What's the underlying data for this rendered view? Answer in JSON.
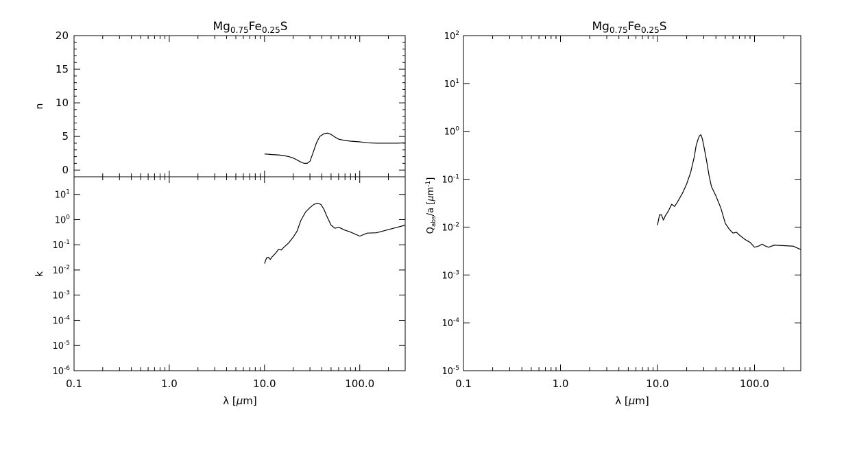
{
  "chart_data": [
    {
      "type": "line",
      "title": "Mg0.75Fe0.25S",
      "title_parts": {
        "a": "Mg",
        "b": "0.75",
        "c": "Fe",
        "d": "0.25",
        "e": "S"
      },
      "xlabel": "λ [μm]",
      "xlabel_parts": {
        "a": "λ [",
        "b": "μ",
        "c": "m]"
      },
      "xscale": "log",
      "xlim": [
        0.1,
        300
      ],
      "x_tick_labels": [
        "0.1",
        "1.0",
        "10.0",
        "100.0"
      ],
      "ylabel": "n",
      "yscale": "linear",
      "ylim": [
        -1,
        20
      ],
      "y_tick_labels": [
        "0",
        "5",
        "10",
        "15",
        "20"
      ],
      "grid": false,
      "series": [
        {
          "x": [
            10,
            12,
            14,
            16,
            18,
            20,
            22,
            24,
            26,
            28,
            30,
            32,
            35,
            38,
            42,
            46,
            50,
            55,
            60,
            70,
            80,
            100,
            120,
            150,
            200,
            250,
            300
          ],
          "values": [
            2.4,
            2.3,
            2.25,
            2.15,
            2.0,
            1.8,
            1.5,
            1.2,
            1.0,
            1.0,
            1.3,
            2.4,
            4.0,
            5.0,
            5.4,
            5.5,
            5.3,
            4.9,
            4.6,
            4.4,
            4.3,
            4.2,
            4.05,
            4.0,
            4.0,
            4.0,
            4.05
          ]
        }
      ]
    },
    {
      "type": "line",
      "xlabel": "λ [μm]",
      "xscale": "log",
      "xlim": [
        0.1,
        300
      ],
      "x_tick_labels": [
        "0.1",
        "1.0",
        "10.0",
        "100.0"
      ],
      "ylabel": "k",
      "yscale": "log",
      "ylim": [
        1e-06,
        50
      ],
      "y_tick_labels": [
        {
          "base": "10",
          "exp": "1"
        },
        {
          "base": "10",
          "exp": "0"
        },
        {
          "base": "10",
          "exp": "-1"
        },
        {
          "base": "10",
          "exp": "-2"
        },
        {
          "base": "10",
          "exp": "-3"
        },
        {
          "base": "10",
          "exp": "-4"
        },
        {
          "base": "10",
          "exp": "-5"
        },
        {
          "base": "10",
          "exp": "-6"
        }
      ],
      "grid": false,
      "series": [
        {
          "x": [
            10,
            10.5,
            11,
            11.5,
            12,
            13,
            14,
            15,
            16,
            18,
            20,
            22,
            24,
            27,
            30,
            33,
            36,
            39,
            42,
            45,
            50,
            55,
            60,
            70,
            80,
            100,
            120,
            150,
            200,
            250,
            300
          ],
          "values": [
            0.018,
            0.03,
            0.032,
            0.026,
            0.033,
            0.045,
            0.065,
            0.062,
            0.08,
            0.12,
            0.2,
            0.35,
            0.9,
            2.0,
            3.0,
            4.0,
            4.5,
            4.0,
            2.6,
            1.4,
            0.6,
            0.45,
            0.5,
            0.38,
            0.32,
            0.22,
            0.29,
            0.3,
            0.4,
            0.5,
            0.6
          ]
        }
      ]
    },
    {
      "type": "line",
      "title": "Mg0.75Fe0.25S",
      "xlabel": "λ [μm]",
      "xscale": "log",
      "xlim": [
        0.1,
        300
      ],
      "x_tick_labels": [
        "0.1",
        "1.0",
        "10.0",
        "100.0"
      ],
      "ylabel": "Qabs/a [μm-1]",
      "ylabel_parts": {
        "a": "Q",
        "b": "abs",
        "c": "/a [",
        "d": "μ",
        "e": "m",
        "f": "-1",
        "g": "]"
      },
      "yscale": "log",
      "ylim": [
        1e-05,
        100
      ],
      "y_tick_labels": [
        {
          "base": "10",
          "exp": "2"
        },
        {
          "base": "10",
          "exp": "1"
        },
        {
          "base": "10",
          "exp": "0"
        },
        {
          "base": "10",
          "exp": "-1"
        },
        {
          "base": "10",
          "exp": "-2"
        },
        {
          "base": "10",
          "exp": "-3"
        },
        {
          "base": "10",
          "exp": "-4"
        },
        {
          "base": "10",
          "exp": "-5"
        }
      ],
      "grid": false,
      "series": [
        {
          "x": [
            10,
            10.5,
            11,
            11.5,
            12,
            13,
            14,
            15,
            16,
            18,
            20,
            22,
            24,
            25,
            26,
            27,
            28,
            29,
            30,
            32,
            34,
            36,
            40,
            45,
            50,
            55,
            60,
            65,
            70,
            80,
            90,
            100,
            110,
            120,
            130,
            140,
            160,
            200,
            250,
            300
          ],
          "values": [
            0.011,
            0.018,
            0.018,
            0.014,
            0.017,
            0.022,
            0.03,
            0.027,
            0.033,
            0.05,
            0.08,
            0.14,
            0.3,
            0.5,
            0.65,
            0.8,
            0.85,
            0.7,
            0.5,
            0.25,
            0.12,
            0.07,
            0.045,
            0.025,
            0.012,
            0.009,
            0.0075,
            0.0078,
            0.0068,
            0.0055,
            0.0048,
            0.0038,
            0.004,
            0.0044,
            0.004,
            0.0038,
            0.0042,
            0.0041,
            0.004,
            0.0034
          ]
        }
      ]
    }
  ]
}
